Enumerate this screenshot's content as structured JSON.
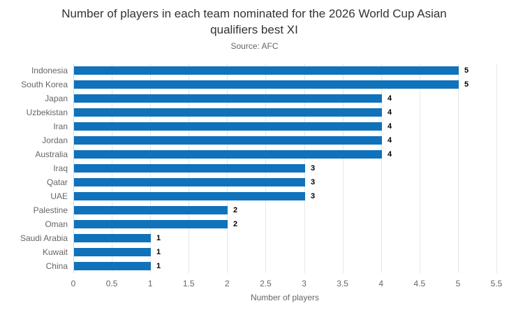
{
  "chart_data": {
    "type": "bar",
    "orientation": "horizontal",
    "title": "Number of players in each team nominated for the 2026 World Cup Asian qualifiers best XI",
    "subtitle": "Source: AFC",
    "xlabel": "Number of players",
    "categories": [
      "Indonesia",
      "South Korea",
      "Japan",
      "Uzbekistan",
      "Iran",
      "Jordan",
      "Australia",
      "Iraq",
      "Qatar",
      "UAE",
      "Palestine",
      "Oman",
      "Saudi Arabia",
      "Kuwait",
      "China"
    ],
    "values": [
      5,
      5,
      4,
      4,
      4,
      4,
      4,
      3,
      3,
      3,
      2,
      2,
      1,
      1,
      1
    ],
    "data_labels": [
      "5",
      "5",
      "4",
      "4",
      "4",
      "4",
      "4",
      "3",
      "3",
      "3",
      "2",
      "2",
      "1",
      "1",
      "1"
    ],
    "xlim": [
      0,
      5.5
    ],
    "xticks": [
      0,
      0.5,
      1,
      1.5,
      2,
      2.5,
      3,
      3.5,
      4,
      4.5,
      5,
      5.5
    ],
    "xtick_labels": [
      "0",
      "0.5",
      "1",
      "1.5",
      "2",
      "2.5",
      "3",
      "3.5",
      "4",
      "4.5",
      "5",
      "5.5"
    ],
    "grid": true,
    "legend": false,
    "colors": {
      "bar": "#1072ba",
      "grid": "#e6e6e6",
      "axis_line": "#ccd6eb",
      "title": "#333333",
      "subtitle": "#666666",
      "tick_label": "#666666",
      "data_label": "#000000"
    }
  }
}
